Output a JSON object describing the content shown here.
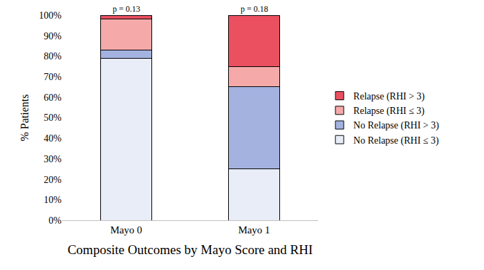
{
  "chart_data": {
    "type": "bar",
    "stacked": true,
    "x_label": "Composite Outcomes by Mayo Score and RHI",
    "y_label": "% Patients",
    "categories": [
      "Mayo 0",
      "Mayo 1"
    ],
    "series": [
      {
        "name": "No Relapse (RHI ≤ 3)",
        "color": "#e8edf8",
        "values": [
          79,
          25
        ]
      },
      {
        "name": "No Relapse (RHI > 3)",
        "color": "#a3b2df",
        "values": [
          4,
          40
        ]
      },
      {
        "name": "Relapse (RHI ≤ 3)",
        "color": "#f5a9a9",
        "values": [
          15,
          10
        ]
      },
      {
        "name": "Relapse (RHI > 3)",
        "color": "#eb5060",
        "values": [
          2,
          25
        ]
      }
    ],
    "ylim": [
      0,
      100
    ],
    "yticks": [
      {
        "value": 0,
        "label": "0%"
      },
      {
        "value": 10,
        "label": "10%"
      },
      {
        "value": 20,
        "label": "20%"
      },
      {
        "value": 30,
        "label": "30%"
      },
      {
        "value": 40,
        "label": "40%"
      },
      {
        "value": 50,
        "label": "50%"
      },
      {
        "value": 60,
        "label": "60%"
      },
      {
        "value": 70,
        "label": "70%"
      },
      {
        "value": 80,
        "label": "80%"
      },
      {
        "value": 90,
        "label": "90%"
      },
      {
        "value": 100,
        "label": "100%"
      }
    ],
    "grid": false,
    "legend": "right",
    "annotations": [
      {
        "category": "Mayo 0",
        "text": "p = 0.13"
      },
      {
        "category": "Mayo 1",
        "text": "p = 0.18"
      }
    ]
  }
}
